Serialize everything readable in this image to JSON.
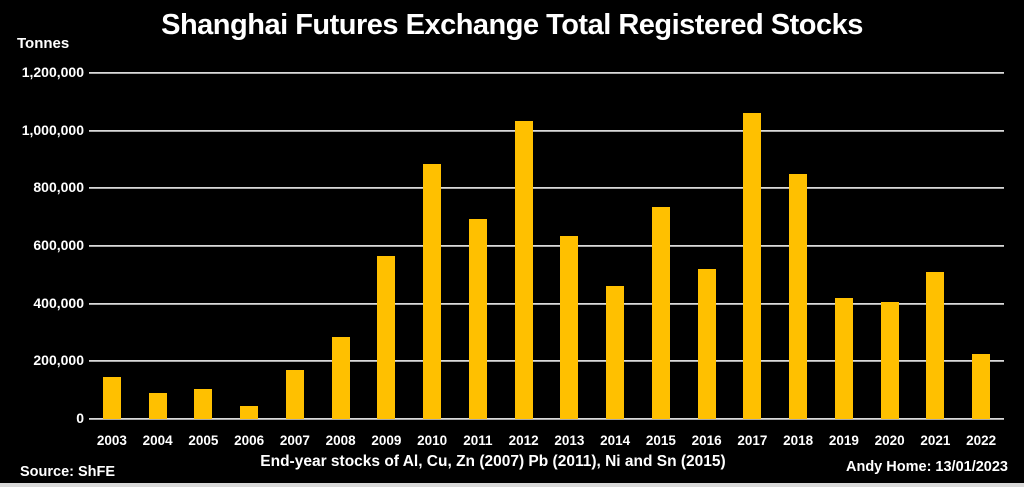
{
  "page": {
    "note": "End-year stocks of Al, Cu, Zn (2007) Pb (2011), Ni and Sn (2015)",
    "source": "Source: ShFE",
    "credit": "Andy Home: 13/01/2023"
  },
  "colors": {
    "background": "#000000",
    "bar": "#FFC000",
    "gridline": "#D9D9D9",
    "text": "#FFFFFF",
    "bottom_strip": "#D9D9D9"
  },
  "chart_data": {
    "type": "bar",
    "title": "Shanghai Futures Exchange Total Registered Stocks",
    "ylabel": "Tonnes",
    "xlabel": "",
    "categories": [
      "2003",
      "2004",
      "2005",
      "2006",
      "2007",
      "2008",
      "2009",
      "2010",
      "2011",
      "2012",
      "2013",
      "2014",
      "2015",
      "2016",
      "2017",
      "2018",
      "2019",
      "2020",
      "2021",
      "2022"
    ],
    "values": [
      145000,
      90000,
      105000,
      45000,
      170000,
      285000,
      565000,
      885000,
      695000,
      1035000,
      635000,
      460000,
      735000,
      520000,
      1060000,
      850000,
      420000,
      405000,
      510000,
      225000
    ],
    "ylim": [
      0,
      1200000
    ],
    "yticks": [
      0,
      200000,
      400000,
      600000,
      800000,
      1000000,
      1200000
    ],
    "grid": true,
    "legend": false,
    "bar_color": "#FFC000"
  }
}
